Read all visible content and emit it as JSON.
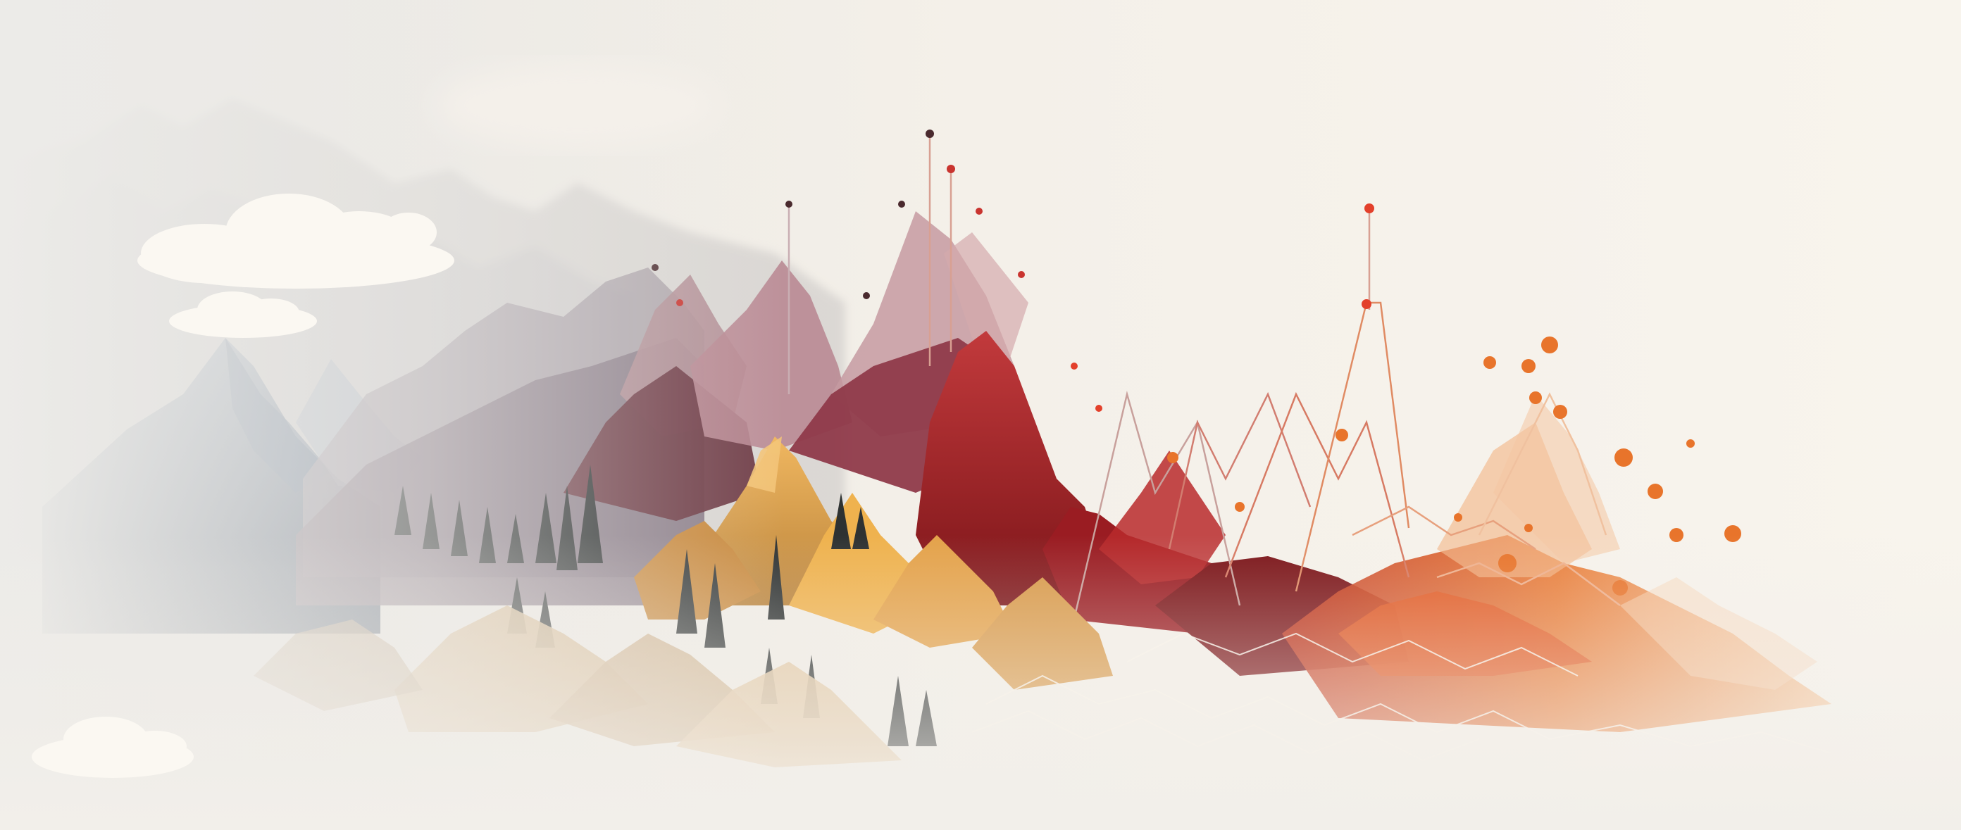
{
  "palette": {
    "background": "#f5f1ea",
    "mist": "#ece8e2",
    "slate_blue": "#7d8ea3",
    "grey_purple": "#9a8c95",
    "mauve": "#b58f95",
    "plum": "#6e3a45",
    "crimson": "#a51f26",
    "dark_red": "#7b1418",
    "gold": "#e2a84e",
    "sand": "#d9b68d",
    "orange": "#e8742b",
    "peach": "#f1b889",
    "forest": "#2e3232",
    "cloud": "#fbf8f2"
  },
  "scene": {
    "subject": "mountain-range",
    "clouds": 3,
    "style": "low-poly"
  }
}
